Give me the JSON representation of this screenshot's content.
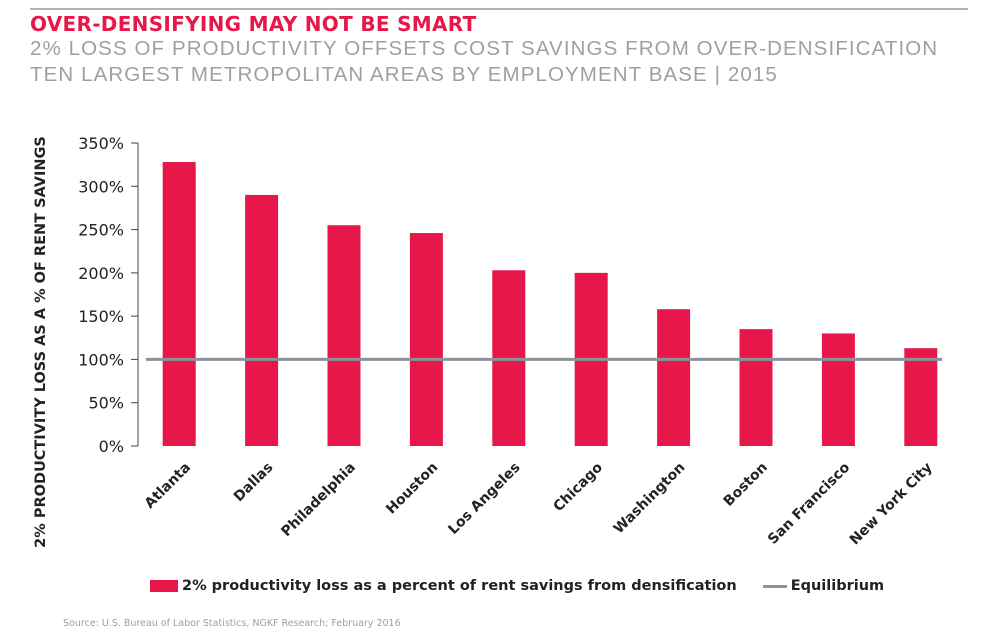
{
  "header": {
    "title": "OVER-DENSIFYING MAY NOT BE SMART",
    "subtitle_line1": "2% LOSS OF PRODUCTIVITY OFFSETS COST SAVINGS FROM OVER-DENSIFICATION",
    "subtitle_line2": "TEN LARGEST METROPOLITAN AREAS BY EMPLOYMENT BASE  |  2015"
  },
  "colors": {
    "accent": "#e8174a",
    "bar": "#e8174a",
    "equilibrium_line": "#8a9399",
    "subtitle": "#9aa1a6"
  },
  "chart_data": {
    "type": "bar",
    "categories": [
      "Atlanta",
      "Dallas",
      "Philadelphia",
      "Houston",
      "Los Angeles",
      "Chicago",
      "Washington",
      "Boston",
      "San Francisco",
      "New York City"
    ],
    "series": [
      {
        "name": "2% productivity loss as a percent of rent savings from densification",
        "values": [
          328,
          290,
          255,
          246,
          203,
          200,
          158,
          135,
          130,
          113
        ]
      }
    ],
    "reference_line": {
      "name": "Equilibrium",
      "value": 100
    },
    "ylabel": "2% PRODUCTIVITY LOSS AS A % OF RENT SAVINGS",
    "xlabel": "",
    "ylim": [
      0,
      350
    ],
    "yticks": [
      0,
      50,
      100,
      150,
      200,
      250,
      300,
      350
    ],
    "ytick_labels": [
      "0%",
      "50%",
      "100%",
      "150%",
      "200%",
      "250%",
      "300%",
      "350%"
    ],
    "grid": false,
    "legend_position": "bottom"
  },
  "legend": {
    "bar_label": "2% productivity loss as a percent of rent savings from densification",
    "line_label": "Equilibrium"
  },
  "source": "Source: U.S. Bureau of Labor Statistics, NGKF Research; February 2016"
}
